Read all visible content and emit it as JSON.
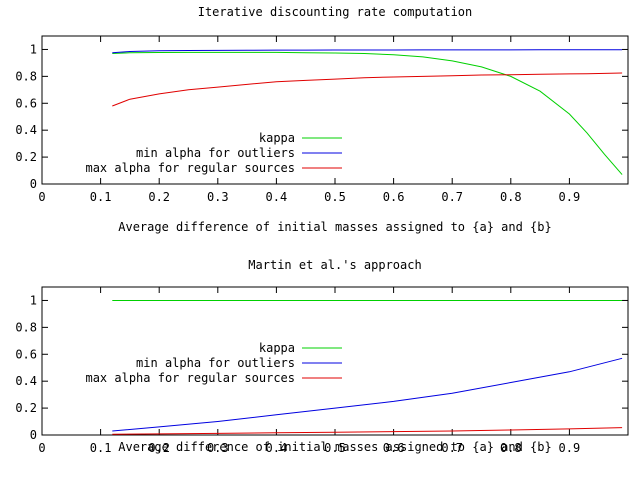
{
  "chart_data": [
    {
      "type": "line",
      "title": "Iterative discounting rate computation",
      "xlabel": "Average difference of initial masses assigned to {a} and {b}",
      "ylabel": "",
      "xlim": [
        0,
        1
      ],
      "ylim": [
        0,
        1.1
      ],
      "xticks": [
        "0",
        "0.1",
        "0.2",
        "0.3",
        "0.4",
        "0.5",
        "0.6",
        "0.7",
        "0.8",
        "0.9"
      ],
      "yticks": [
        "0",
        "0.2",
        "0.4",
        "0.6",
        "0.8",
        "1"
      ],
      "grid": false,
      "legend_position": "left-bottom",
      "x": [
        0.12,
        0.15,
        0.2,
        0.25,
        0.3,
        0.35,
        0.4,
        0.45,
        0.5,
        0.55,
        0.6,
        0.65,
        0.7,
        0.75,
        0.8,
        0.85,
        0.9,
        0.93,
        0.96,
        0.99
      ],
      "series": [
        {
          "name": "kappa",
          "color": "#00d000",
          "values": [
            0.97,
            0.975,
            0.977,
            0.978,
            0.978,
            0.978,
            0.978,
            0.976,
            0.974,
            0.97,
            0.96,
            0.945,
            0.915,
            0.87,
            0.8,
            0.69,
            0.52,
            0.38,
            0.22,
            0.07
          ]
        },
        {
          "name": "min alpha for outliers",
          "color": "#0000e0",
          "values": [
            0.975,
            0.985,
            0.99,
            0.992,
            0.993,
            0.994,
            0.995,
            0.995,
            0.996,
            0.996,
            0.996,
            0.997,
            0.997,
            0.997,
            0.997,
            0.998,
            0.998,
            0.998,
            0.998,
            0.998
          ]
        },
        {
          "name": "max alpha for regular sources",
          "color": "#e00000",
          "values": [
            0.58,
            0.63,
            0.67,
            0.7,
            0.72,
            0.74,
            0.76,
            0.77,
            0.78,
            0.79,
            0.795,
            0.8,
            0.805,
            0.81,
            0.812,
            0.815,
            0.818,
            0.82,
            0.822,
            0.825
          ]
        }
      ]
    },
    {
      "type": "line",
      "title": "Martin et al.'s approach",
      "xlabel": "Average difference of initial masses assigned to {a} and {b}",
      "ylabel": "",
      "xlim": [
        0,
        1
      ],
      "ylim": [
        0,
        1.1
      ],
      "xticks": [
        "0",
        "0.1",
        "0.2",
        "0.3",
        "0.4",
        "0.5",
        "0.6",
        "0.7",
        "0.8",
        "0.9"
      ],
      "yticks": [
        "0",
        "0.2",
        "0.4",
        "0.6",
        "0.8",
        "1"
      ],
      "grid": false,
      "legend_position": "left-middle",
      "x": [
        0.12,
        0.2,
        0.3,
        0.4,
        0.5,
        0.6,
        0.7,
        0.8,
        0.9,
        0.99
      ],
      "series": [
        {
          "name": "kappa",
          "color": "#00d000",
          "values": [
            1.0,
            1.0,
            1.0,
            1.0,
            1.0,
            1.0,
            1.0,
            1.0,
            1.0,
            1.0
          ]
        },
        {
          "name": "min alpha for outliers",
          "color": "#0000e0",
          "values": [
            0.03,
            0.06,
            0.1,
            0.15,
            0.2,
            0.25,
            0.31,
            0.39,
            0.47,
            0.57
          ]
        },
        {
          "name": "max alpha for regular sources",
          "color": "#e00000",
          "values": [
            0.005,
            0.008,
            0.012,
            0.016,
            0.02,
            0.025,
            0.03,
            0.037,
            0.045,
            0.055
          ]
        }
      ]
    }
  ]
}
